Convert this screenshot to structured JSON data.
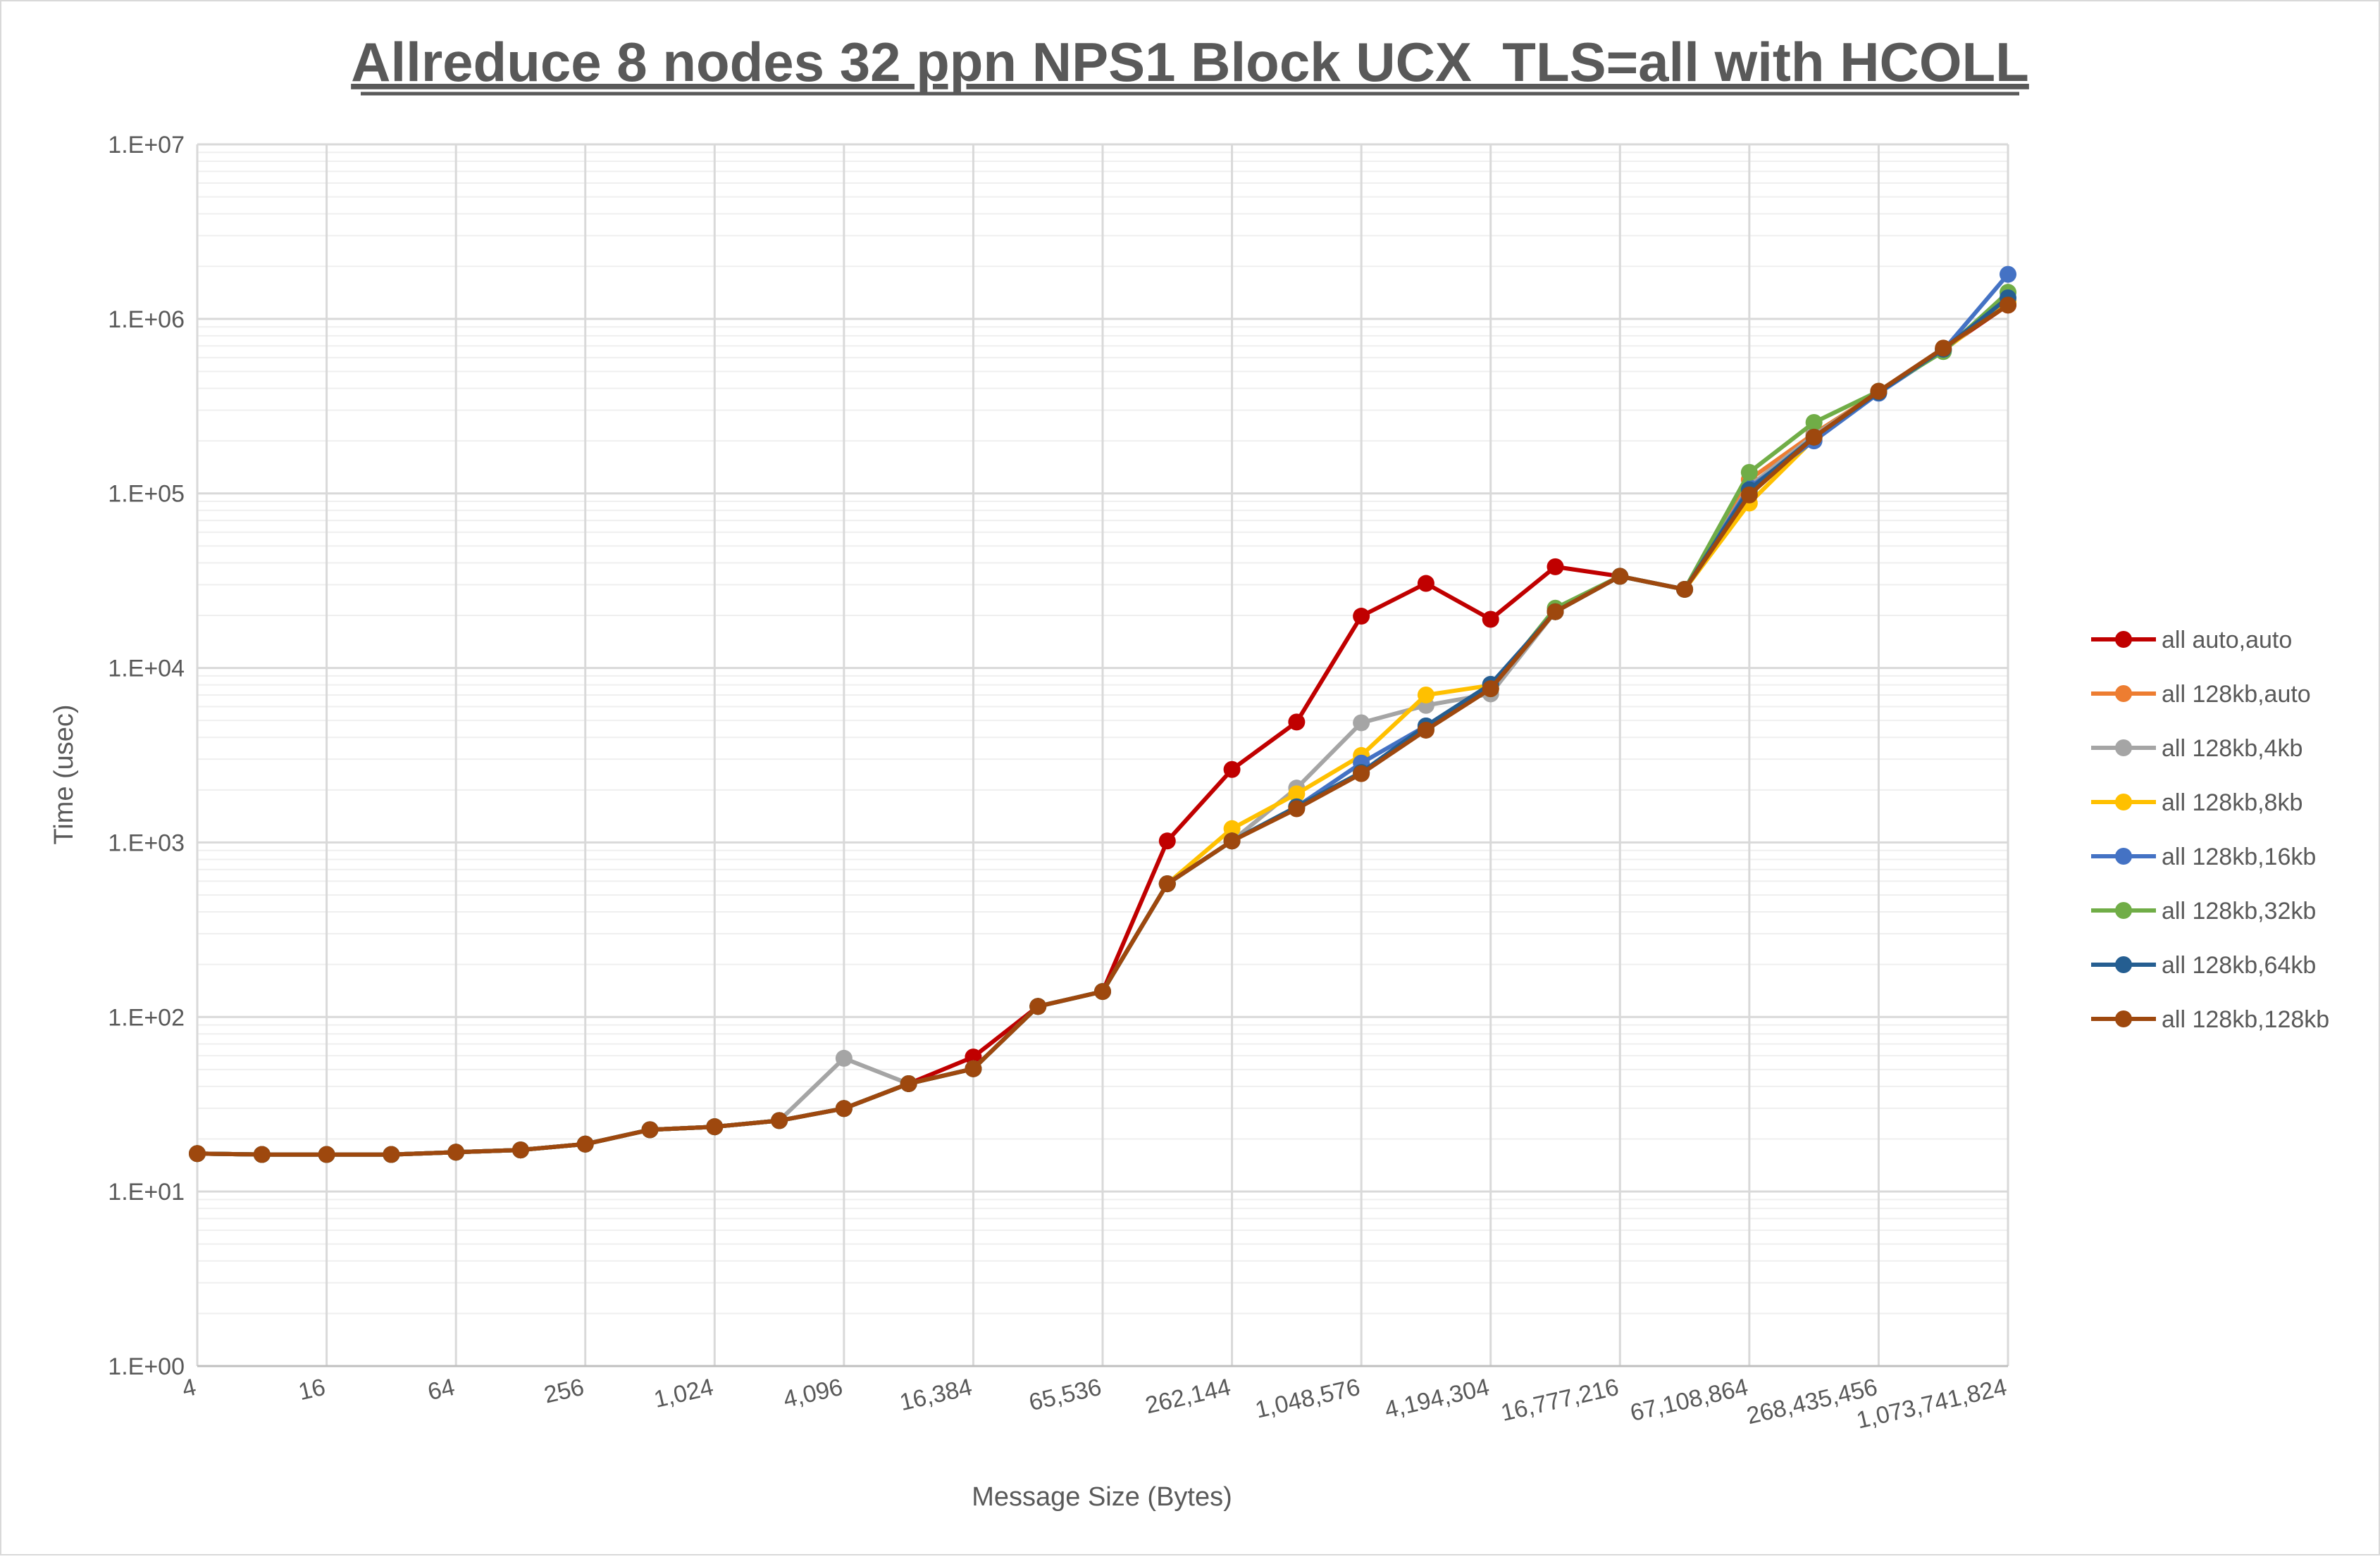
{
  "chart_data": {
    "type": "line",
    "title": "Allreduce 8 nodes 32 ppn NPS1 Block UCX_TLS=all with HCOLL",
    "xlabel": "Message Size (Bytes)",
    "ylabel": "Time (usec)",
    "yscale": "log",
    "ylim": [
      1,
      10000000
    ],
    "y_ticks": [
      "1.E+00",
      "1.E+01",
      "1.E+02",
      "1.E+03",
      "1.E+04",
      "1.E+05",
      "1.E+06",
      "1.E+07"
    ],
    "x": [
      "4",
      "8",
      "16",
      "32",
      "64",
      "128",
      "256",
      "512",
      "1,024",
      "2,048",
      "4,096",
      "8,192",
      "16,384",
      "32,768",
      "65,536",
      "131,072",
      "262,144",
      "524,288",
      "1,048,576",
      "2,097,152",
      "4,194,304",
      "8,388,608",
      "16,777,216",
      "33,554,432",
      "67,108,864",
      "134,217,728",
      "268,435,456",
      "536,870,912",
      "1,073,741,824"
    ],
    "x_tick_labels": [
      "4",
      "16",
      "64",
      "256",
      "1,024",
      "4,096",
      "16,384",
      "65,536",
      "262,144",
      "1,048,576",
      "4,194,304",
      "16,777,216",
      "67,108,864",
      "268,435,456",
      "1,073,741,824"
    ],
    "grid": true,
    "legend_position": "right",
    "series": [
      {
        "name": "all auto,auto",
        "color": "#C00000",
        "values": [
          16.5,
          16.3,
          16.3,
          16.3,
          16.8,
          17.3,
          18.7,
          22.6,
          23.5,
          25.5,
          29.9,
          41.5,
          59,
          115,
          140,
          1020,
          2620,
          4900,
          19800,
          30500,
          19000,
          38000,
          33500,
          28200,
          100000,
          210000,
          380000,
          670000,
          1200000
        ]
      },
      {
        "name": "all 128kb,auto",
        "color": "#ED7D31",
        "values": [
          16.5,
          16.3,
          16.3,
          16.3,
          16.8,
          17.3,
          18.7,
          22.6,
          23.5,
          25.5,
          29.9,
          41.5,
          50.5,
          115,
          140,
          580,
          1020,
          1600,
          2520,
          4450,
          7600,
          21000,
          33500,
          28200,
          120000,
          220000,
          380000,
          660000,
          1250000
        ]
      },
      {
        "name": "all 128kb,4kb",
        "color": "#A5A5A5",
        "values": [
          16.5,
          16.3,
          16.3,
          16.3,
          16.8,
          17.3,
          18.7,
          22.6,
          23.5,
          25.5,
          58,
          41.5,
          50.5,
          115,
          140,
          580,
          1020,
          2050,
          4850,
          6100,
          7100,
          21000,
          33500,
          28200,
          110000,
          215000,
          380000,
          660000,
          1250000
        ]
      },
      {
        "name": "all 128kb,8kb",
        "color": "#FFC000",
        "values": [
          16.5,
          16.3,
          16.3,
          16.3,
          16.8,
          17.3,
          18.7,
          22.6,
          23.5,
          25.5,
          29.9,
          41.5,
          50.5,
          115,
          140,
          580,
          1200,
          1900,
          3150,
          7000,
          7950,
          21000,
          33500,
          28200,
          88000,
          205000,
          380000,
          660000,
          1250000
        ]
      },
      {
        "name": "all 128kb,16kb",
        "color": "#4472C4",
        "values": [
          16.5,
          16.3,
          16.3,
          16.3,
          16.8,
          17.3,
          18.7,
          22.6,
          23.5,
          25.5,
          29.9,
          41.5,
          50.5,
          115,
          140,
          580,
          1020,
          1600,
          2850,
          4650,
          8050,
          21000,
          33500,
          28200,
          108000,
          200000,
          375000,
          660000,
          1800000
        ]
      },
      {
        "name": "all 128kb,32kb",
        "color": "#70AD47",
        "values": [
          16.5,
          16.3,
          16.3,
          16.3,
          16.8,
          17.3,
          18.7,
          22.6,
          23.5,
          25.5,
          29.9,
          41.5,
          50.5,
          115,
          140,
          580,
          1020,
          1600,
          2520,
          4450,
          7600,
          22000,
          33500,
          28200,
          132000,
          255000,
          385000,
          650000,
          1420000
        ]
      },
      {
        "name": "all 128kb,64kb",
        "color": "#255E91",
        "values": [
          16.5,
          16.3,
          16.3,
          16.3,
          16.8,
          17.3,
          18.7,
          22.6,
          23.5,
          25.5,
          29.9,
          41.5,
          50.5,
          115,
          140,
          580,
          1020,
          1600,
          2520,
          4650,
          8050,
          21000,
          33500,
          28200,
          105000,
          210000,
          380000,
          670000,
          1320000
        ]
      },
      {
        "name": "all 128kb,128kb",
        "color": "#9E480E",
        "values": [
          16.5,
          16.3,
          16.3,
          16.3,
          16.8,
          17.3,
          18.7,
          22.6,
          23.5,
          25.5,
          29.9,
          41.5,
          50.5,
          115,
          140,
          580,
          1020,
          1560,
          2480,
          4400,
          7600,
          21000,
          33500,
          28200,
          98000,
          210000,
          385000,
          680000,
          1200000
        ]
      }
    ]
  }
}
